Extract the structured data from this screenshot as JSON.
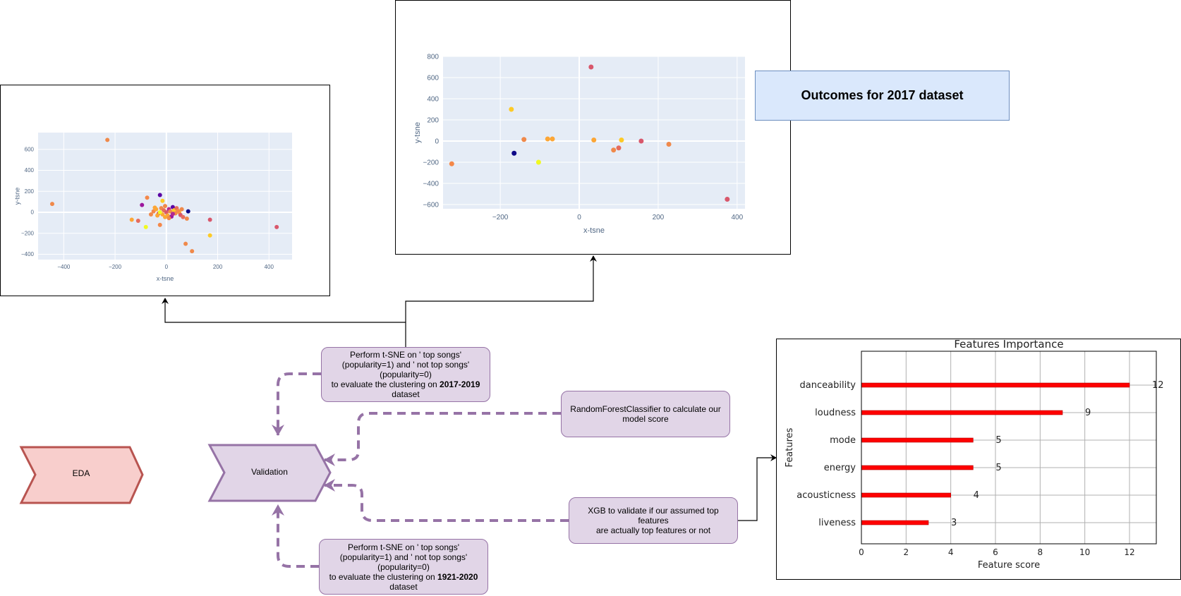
{
  "diagram": {
    "eda_label": "EDA",
    "validation_label": "Validation",
    "tsne_top": {
      "line1": "Perform t-SNE on ' top songs'",
      "line2": "(popularity=1) and  ' not top songs'",
      "line3": "(popularity=0)",
      "line4_prefix": "to evaluate the clustering   on ",
      "line4_bold": "2017-2019",
      "line5": "dataset"
    },
    "tsne_bottom": {
      "line1": "Perform t-SNE on ' top songs'",
      "line2": "(popularity=1) and  ' not top songs'",
      "line3": "(popularity=0)",
      "line4_prefix": "to evaluate the clustering   on ",
      "line4_bold": "1921-2020",
      "line5": "dataset"
    },
    "rf_line1": "RandomForestClassifier to calculate our",
    "rf_line2": "model score",
    "xgb_line1": "XGB to validate if our assumed top features",
    "xgb_line2": "are actually top features or not",
    "outcome_label": "Outcomes  for 2017 dataset",
    "colors": {
      "eda_fill": "#f8cecc",
      "eda_stroke": "#b85450",
      "process_fill": "#e1d5e7",
      "process_stroke": "#9673a6",
      "outcome_fill": "#dae8fc",
      "outcome_stroke": "#6c8ebf",
      "plot_bg": "#e5ecf6",
      "bar": "#ff0000"
    }
  },
  "chart_data": [
    {
      "type": "scatter",
      "xlabel": "x-tsne",
      "ylabel": "y-tsne",
      "xlim": [
        -500,
        490
      ],
      "ylim": [
        -450,
        760
      ],
      "xticks": [
        -400,
        -200,
        0,
        200,
        400
      ],
      "yticks": [
        -400,
        -200,
        0,
        200,
        400,
        600
      ],
      "points": [
        {
          "x": -230,
          "y": 690,
          "c": "#f0894a"
        },
        {
          "x": -445,
          "y": 80,
          "c": "#f0894a"
        },
        {
          "x": -25,
          "y": 165,
          "c": "#5b02a3"
        },
        {
          "x": -75,
          "y": 140,
          "c": "#f48849"
        },
        {
          "x": -95,
          "y": 70,
          "c": "#9c179e"
        },
        {
          "x": 25,
          "y": 50,
          "c": "#5b02a3"
        },
        {
          "x": 85,
          "y": 10,
          "c": "#0d0887"
        },
        {
          "x": -135,
          "y": -70,
          "c": "#fca636"
        },
        {
          "x": -110,
          "y": -80,
          "c": "#e66c5c"
        },
        {
          "x": -80,
          "y": -140,
          "c": "#f0f921"
        },
        {
          "x": -25,
          "y": -120,
          "c": "#f48849"
        },
        {
          "x": 170,
          "y": -70,
          "c": "#d8576b"
        },
        {
          "x": 80,
          "y": -60,
          "c": "#f0894a"
        },
        {
          "x": 170,
          "y": -220,
          "c": "#fdca26"
        },
        {
          "x": 430,
          "y": -140,
          "c": "#d8576b"
        },
        {
          "x": 75,
          "y": -300,
          "c": "#f0894a"
        },
        {
          "x": 100,
          "y": -370,
          "c": "#f0894a"
        },
        {
          "x": -50,
          "y": 10,
          "c": "#f48849"
        },
        {
          "x": -40,
          "y": 30,
          "c": "#fca636"
        },
        {
          "x": -30,
          "y": -10,
          "c": "#d8576b"
        },
        {
          "x": -20,
          "y": 40,
          "c": "#f0894a"
        },
        {
          "x": -15,
          "y": -20,
          "c": "#fca636"
        },
        {
          "x": -10,
          "y": 20,
          "c": "#e66c5c"
        },
        {
          "x": -5,
          "y": 60,
          "c": "#f0894a"
        },
        {
          "x": 0,
          "y": 0,
          "c": "#d8576b"
        },
        {
          "x": 5,
          "y": -30,
          "c": "#fca636"
        },
        {
          "x": 10,
          "y": 30,
          "c": "#b12a90"
        },
        {
          "x": 15,
          "y": 10,
          "c": "#f0894a"
        },
        {
          "x": 20,
          "y": -40,
          "c": "#9c179e"
        },
        {
          "x": 30,
          "y": 20,
          "c": "#fdca26"
        },
        {
          "x": 35,
          "y": -10,
          "c": "#f48849"
        },
        {
          "x": 40,
          "y": 40,
          "c": "#e66c5c"
        },
        {
          "x": 50,
          "y": 0,
          "c": "#fca636"
        },
        {
          "x": 55,
          "y": -25,
          "c": "#d8576b"
        },
        {
          "x": 60,
          "y": 30,
          "c": "#f0894a"
        },
        {
          "x": -60,
          "y": -20,
          "c": "#f0894a"
        },
        {
          "x": -35,
          "y": -30,
          "c": "#fca636"
        },
        {
          "x": -25,
          "y": 0,
          "c": "#f0f921"
        },
        {
          "x": 25,
          "y": -15,
          "c": "#b12a90"
        },
        {
          "x": 45,
          "y": 15,
          "c": "#f48849"
        },
        {
          "x": -45,
          "y": 45,
          "c": "#fca636"
        },
        {
          "x": 10,
          "y": -55,
          "c": "#f0894a"
        },
        {
          "x": -5,
          "y": -45,
          "c": "#fca636"
        },
        {
          "x": 65,
          "y": -45,
          "c": "#e66c5c"
        },
        {
          "x": -15,
          "y": 110,
          "c": "#fdca26"
        }
      ]
    },
    {
      "type": "scatter",
      "xlabel": "x-tsne",
      "ylabel": "y-tsne",
      "xlim": [
        -345,
        420
      ],
      "ylim": [
        -640,
        800
      ],
      "xticks": [
        -200,
        0,
        200,
        400
      ],
      "yticks": [
        -600,
        -400,
        -200,
        0,
        200,
        400,
        600,
        800
      ],
      "points": [
        {
          "x": 30,
          "y": 700,
          "c": "#d8576b"
        },
        {
          "x": -172,
          "y": 300,
          "c": "#fdca26"
        },
        {
          "x": -140,
          "y": 15,
          "c": "#f0894a"
        },
        {
          "x": -80,
          "y": 20,
          "c": "#fca636"
        },
        {
          "x": -68,
          "y": 20,
          "c": "#fca636"
        },
        {
          "x": 37,
          "y": 10,
          "c": "#fca636"
        },
        {
          "x": 107,
          "y": 10,
          "c": "#fdca26"
        },
        {
          "x": 157,
          "y": 0,
          "c": "#d8576b"
        },
        {
          "x": 227,
          "y": -30,
          "c": "#f0894a"
        },
        {
          "x": -323,
          "y": -215,
          "c": "#f48849"
        },
        {
          "x": -165,
          "y": -115,
          "c": "#0d0887"
        },
        {
          "x": -103,
          "y": -200,
          "c": "#f0f921"
        },
        {
          "x": 87,
          "y": -85,
          "c": "#f0894a"
        },
        {
          "x": 100,
          "y": -65,
          "c": "#e66c5c"
        },
        {
          "x": 375,
          "y": -550,
          "c": "#d8576b"
        }
      ]
    },
    {
      "type": "bar",
      "title": "Features Importance",
      "xlabel": "Feature score",
      "ylabel": "Features",
      "categories": [
        "danceability",
        "loudness",
        "mode",
        "energy",
        "acousticness",
        "liveness"
      ],
      "values": [
        12,
        9,
        5,
        5,
        4,
        3
      ],
      "xlim": [
        0,
        13.2
      ],
      "xticks": [
        0,
        2,
        4,
        6,
        8,
        10,
        12
      ]
    }
  ]
}
